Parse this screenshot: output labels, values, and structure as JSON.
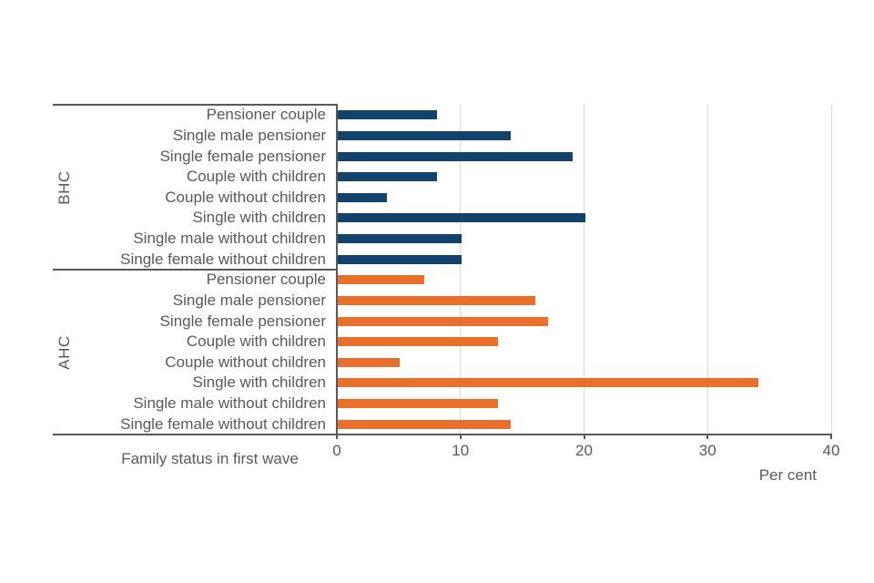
{
  "page": {
    "background": "#ffffff"
  },
  "chart_data": {
    "type": "bar",
    "orientation": "horizontal",
    "title": "",
    "xlabel": "Per cent",
    "ylabel": "Family status in first wave",
    "xlim": [
      0,
      40
    ],
    "xticks": [
      "0",
      "10",
      "20",
      "30",
      "40"
    ],
    "grid": "vertical gridlines at 10, 20, 30, 40",
    "legend": "none (group names shown as rotated axis labels)",
    "categories": [
      "Pensioner couple",
      "Single male pensioner",
      "Single female pensioner",
      "Couple with children",
      "Couple without children",
      "Single with children",
      "Single male without children",
      "Single female without children"
    ],
    "series": [
      {
        "name": "BHC",
        "color": "#12436D",
        "values": [
          8,
          14,
          19,
          8,
          4,
          20,
          10,
          10
        ]
      },
      {
        "name": "AHC",
        "color": "#E8702A",
        "values": [
          7,
          16,
          17,
          13,
          5,
          34,
          13,
          14
        ]
      }
    ],
    "text_color": "#595959",
    "axis_line_color": "#595959",
    "gridline_color": "#D9D9D9"
  }
}
